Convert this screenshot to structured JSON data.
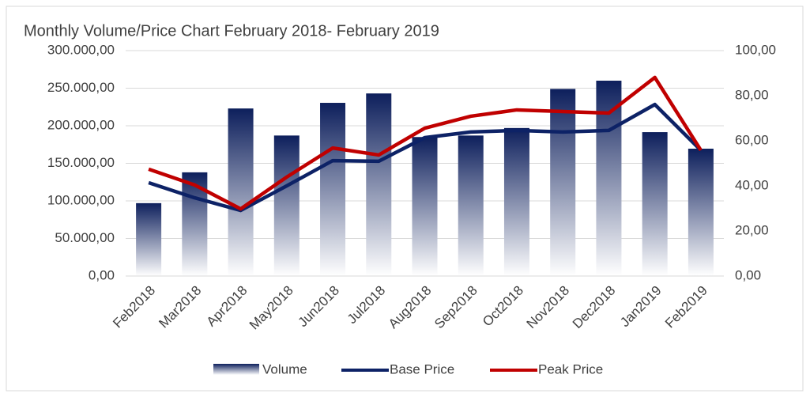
{
  "chart_data": {
    "type": "bar",
    "title": "Monthly Volume/Price Chart February 2018- February 2019",
    "categories": [
      "Feb2018",
      "Mar2018",
      "Apr2018",
      "May2018",
      "Jun2018",
      "Jul2018",
      "Aug2018",
      "Sep2018",
      "Oct2018",
      "Nov2018",
      "Dec2018",
      "Jan2019",
      "Feb2019"
    ],
    "series": [
      {
        "name": "Volume",
        "type": "bar",
        "color": "#0d1f5c",
        "values": [
          97000,
          138000,
          223000,
          187000,
          230500,
          243000,
          185000,
          187000,
          197000,
          249000,
          260000,
          191500,
          169500
        ]
      },
      {
        "name": "Base Price",
        "type": "line",
        "axis": "y2",
        "color": "#0d2266",
        "values": [
          41.4,
          34.7,
          29.1,
          40,
          51.2,
          50.9,
          61.4,
          63.9,
          64.6,
          63.9,
          64.6,
          76.1,
          55.8
        ]
      },
      {
        "name": "Peak Price",
        "type": "line",
        "axis": "y2",
        "color": "#c00000",
        "values": [
          47.4,
          40.4,
          29.8,
          43.9,
          56.8,
          53.7,
          65.6,
          70.9,
          73.7,
          73,
          72.3,
          88.1,
          55.8
        ]
      }
    ],
    "ylim": [
      0,
      300000
    ],
    "yticks": [
      {
        "value": 0,
        "label": "0,00"
      },
      {
        "value": 50000,
        "label": "50.000,00"
      },
      {
        "value": 100000,
        "label": "100.000,00"
      },
      {
        "value": 150000,
        "label": "150.000,00"
      },
      {
        "value": 200000,
        "label": "200.000,00"
      },
      {
        "value": 250000,
        "label": "250.000,00"
      },
      {
        "value": 300000,
        "label": "300.000,00"
      }
    ],
    "y2lim": [
      0,
      100
    ],
    "y2ticks": [
      {
        "value": 0,
        "label": "0,00"
      },
      {
        "value": 20,
        "label": "20,00"
      },
      {
        "value": 40,
        "label": "40,00"
      },
      {
        "value": 60,
        "label": "60,00"
      },
      {
        "value": 80,
        "label": "80,00"
      },
      {
        "value": 100,
        "label": "100,00"
      }
    ],
    "grid": true,
    "legend": "bottom"
  }
}
